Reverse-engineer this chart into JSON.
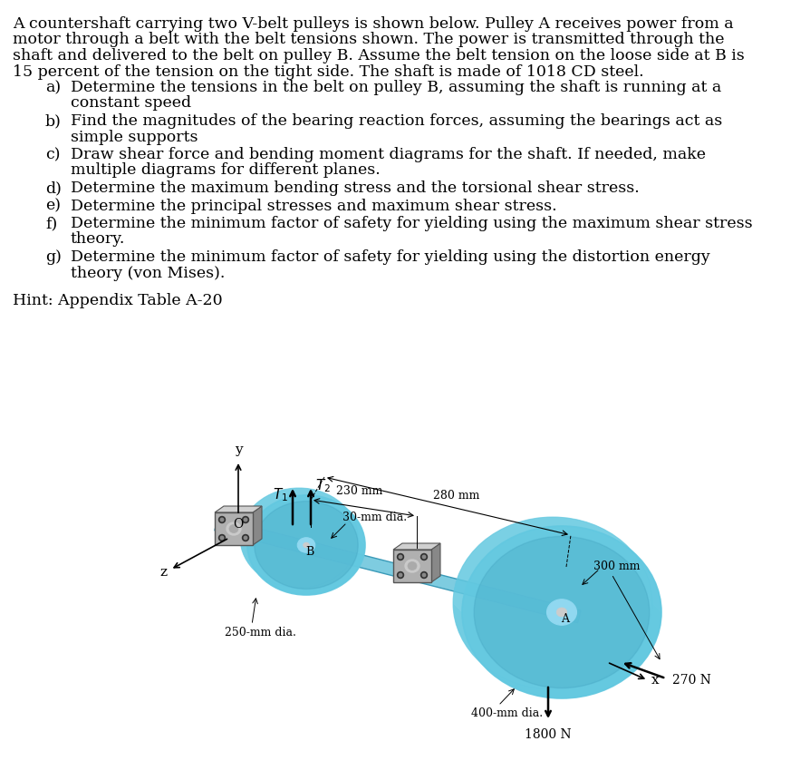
{
  "title_lines": [
    "A countershaft carrying two V-belt pulleys is shown below. Pulley A receives power from a",
    "motor through a belt with the belt tensions shown. The power is transmitted through the",
    "shaft and delivered to the belt on pulley B. Assume the belt tension on the loose side at B is",
    "15 percent of the tension on the tight side. The shaft is made of 1018 CD steel."
  ],
  "items": [
    {
      "label": "a)",
      "lines": [
        "Determine the tensions in the belt on pulley B, assuming the shaft is running at a",
        "constant speed"
      ]
    },
    {
      "label": "b)",
      "lines": [
        "Find the magnitudes of the bearing reaction forces, assuming the bearings act as",
        "simple supports"
      ]
    },
    {
      "label": "c)",
      "lines": [
        "Draw shear force and bending moment diagrams for the shaft. If needed, make",
        "multiple diagrams for different planes."
      ]
    },
    {
      "label": "d)",
      "lines": [
        "Determine the maximum bending stress and the torsional shear stress."
      ]
    },
    {
      "label": "e)",
      "lines": [
        "Determine the principal stresses and maximum shear stress."
      ]
    },
    {
      "label": "f)",
      "lines": [
        "Determine the minimum factor of safety for yielding using the maximum shear stress",
        "theory."
      ]
    },
    {
      "label": "g)",
      "lines": [
        "Determine the minimum factor of safety for yielding using the distortion energy",
        "theory (von Mises)."
      ]
    }
  ],
  "hint": "Hint: Appendix Table A-20",
  "pulley_color": "#62c8e0",
  "pulley_dark": "#3a9ab8",
  "pulley_rim": "#2a7a98",
  "shaft_color": "#7ecce0",
  "bearing_face": "#b0b0b0",
  "bearing_top": "#d0d0d0",
  "bearing_side": "#888888",
  "bg_color": "#ffffff",
  "text_color": "#000000"
}
